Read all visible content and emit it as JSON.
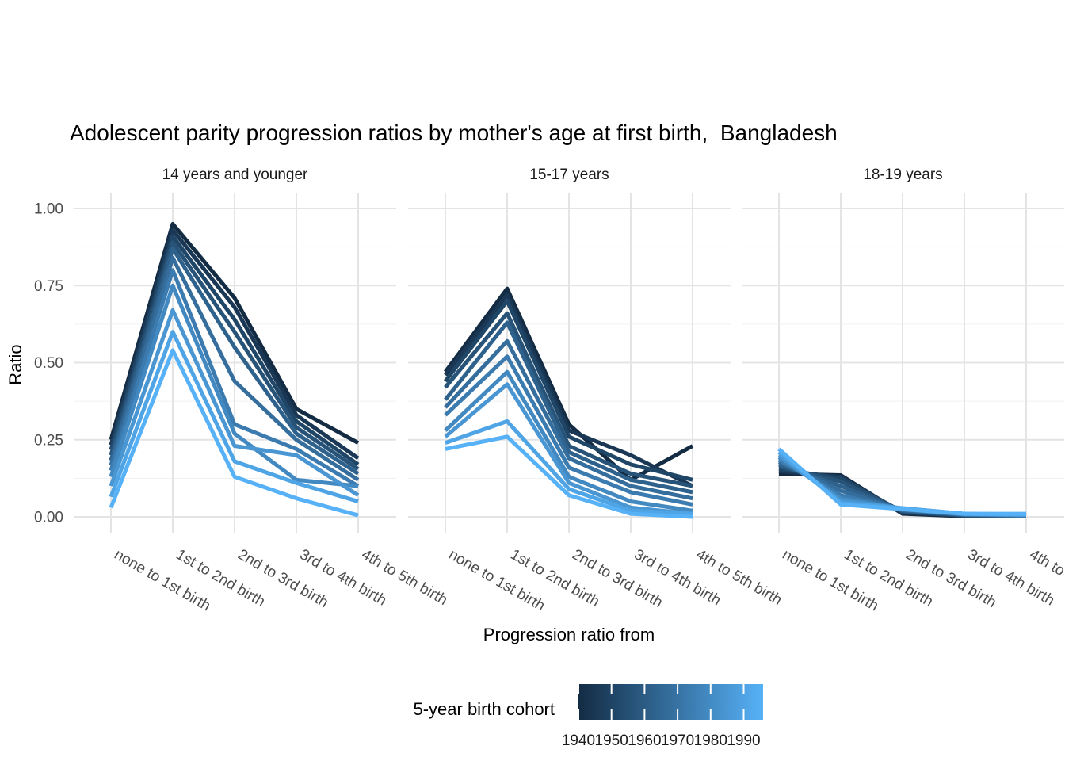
{
  "chart_data": {
    "type": "line",
    "title": "Adolescent parity progression ratios by mother's age at first birth,  Bangladesh",
    "xlabel": "Progression ratio from",
    "ylabel": "Ratio",
    "categories": [
      "none to 1st birth",
      "1st to 2nd birth",
      "2nd to 3rd birth",
      "3rd to 4th birth",
      "4th to 5th birth"
    ],
    "y_ticks": [
      {
        "v": 0.0,
        "label": "0.00"
      },
      {
        "v": 0.25,
        "label": "0.25"
      },
      {
        "v": 0.5,
        "label": "0.50"
      },
      {
        "v": 0.75,
        "label": "0.75"
      },
      {
        "v": 1.0,
        "label": "1.00"
      }
    ],
    "y_minor_ticks": [
      0.125,
      0.375,
      0.625,
      0.875
    ],
    "ylim": [
      0,
      1
    ],
    "grid": "major horizontal+vertical, minor horizontal; white background",
    "legend": {
      "title": "5-year birth cohort",
      "type": "colorbar",
      "position": "bottom",
      "ticks": [
        "1940",
        "1950",
        "1960",
        "1970",
        "1980",
        "1990"
      ],
      "low_color": "#132B43",
      "high_color": "#56B1F7"
    },
    "facets": [
      {
        "label": "14 years and younger",
        "series": [
          {
            "cohort": 1940,
            "values": [
              0.25,
              0.95,
              0.71,
              0.35,
              0.24
            ]
          },
          {
            "cohort": 1945,
            "values": [
              0.233,
              0.93,
              0.68,
              0.33,
              0.19
            ]
          },
          {
            "cohort": 1950,
            "values": [
              0.217,
              0.91,
              0.64,
              0.31,
              0.17
            ]
          },
          {
            "cohort": 1955,
            "values": [
              0.2,
              0.89,
              0.6,
              0.29,
              0.155
            ]
          },
          {
            "cohort": 1960,
            "values": [
              0.183,
              0.87,
              0.55,
              0.27,
              0.14
            ]
          },
          {
            "cohort": 1965,
            "values": [
              0.167,
              0.84,
              0.44,
              0.25,
              0.12
            ]
          },
          {
            "cohort": 1970,
            "values": [
              0.15,
              0.8,
              0.3,
              0.22,
              0.1
            ]
          },
          {
            "cohort": 1975,
            "values": [
              0.13,
              0.75,
              0.27,
              0.12,
              0.1
            ]
          },
          {
            "cohort": 1980,
            "values": [
              0.1,
              0.67,
              0.23,
              0.2,
              0.07
            ]
          },
          {
            "cohort": 1985,
            "values": [
              0.065,
              0.6,
              0.18,
              0.11,
              0.05
            ]
          },
          {
            "cohort": 1990,
            "values": [
              0.03,
              0.54,
              0.13,
              0.06,
              0.005
            ]
          }
        ]
      },
      {
        "label": "15-17 years",
        "series": [
          {
            "cohort": 1940,
            "values": [
              0.47,
              0.74,
              0.3,
              0.12,
              0.23
            ]
          },
          {
            "cohort": 1945,
            "values": [
              0.46,
              0.72,
              0.28,
              0.2,
              0.1
            ]
          },
          {
            "cohort": 1950,
            "values": [
              0.44,
              0.7,
              0.26,
              0.17,
              0.12
            ]
          },
          {
            "cohort": 1955,
            "values": [
              0.42,
              0.66,
              0.23,
              0.14,
              0.1
            ]
          },
          {
            "cohort": 1960,
            "values": [
              0.38,
              0.63,
              0.21,
              0.12,
              0.08
            ]
          },
          {
            "cohort": 1965,
            "values": [
              0.355,
              0.57,
              0.19,
              0.1,
              0.06
            ]
          },
          {
            "cohort": 1970,
            "values": [
              0.33,
              0.52,
              0.16,
              0.08,
              0.04
            ]
          },
          {
            "cohort": 1975,
            "values": [
              0.28,
              0.47,
              0.13,
              0.05,
              0.02
            ]
          },
          {
            "cohort": 1980,
            "values": [
              0.26,
              0.43,
              0.11,
              0.03,
              0.01
            ]
          },
          {
            "cohort": 1985,
            "values": [
              0.24,
              0.31,
              0.09,
              0.02,
              0.01
            ]
          },
          {
            "cohort": 1990,
            "values": [
              0.22,
              0.26,
              0.07,
              0.01,
              0.0
            ]
          }
        ]
      },
      {
        "label": "18-19 years",
        "series": [
          {
            "cohort": 1940,
            "values": [
              0.14,
              0.135,
              0.01,
              0.002,
              0.002
            ]
          },
          {
            "cohort": 1945,
            "values": [
              0.148,
              0.13,
              0.013,
              0.003,
              0.002
            ]
          },
          {
            "cohort": 1950,
            "values": [
              0.155,
              0.125,
              0.016,
              0.004,
              0.003
            ]
          },
          {
            "cohort": 1955,
            "values": [
              0.163,
              0.115,
              0.018,
              0.005,
              0.003
            ]
          },
          {
            "cohort": 1960,
            "values": [
              0.17,
              0.1,
              0.02,
              0.006,
              0.004
            ]
          },
          {
            "cohort": 1965,
            "values": [
              0.178,
              0.085,
              0.022,
              0.007,
              0.004
            ]
          },
          {
            "cohort": 1970,
            "values": [
              0.185,
              0.07,
              0.024,
              0.008,
              0.005
            ]
          },
          {
            "cohort": 1975,
            "values": [
              0.193,
              0.06,
              0.026,
              0.009,
              0.005
            ]
          },
          {
            "cohort": 1980,
            "values": [
              0.2,
              0.052,
              0.028,
              0.01,
              0.006
            ]
          },
          {
            "cohort": 1985,
            "values": [
              0.21,
              0.045,
              0.028,
              0.01,
              0.008
            ]
          },
          {
            "cohort": 1990,
            "values": [
              0.22,
              0.04,
              0.025,
              0.01,
              0.01
            ]
          }
        ]
      }
    ]
  },
  "colors": {
    "background": "#ffffff",
    "grid_major": "#e4e4e4",
    "grid_minor": "#f0f0f0",
    "axis_tick_text": "#4d4d4d",
    "strip_text": "#1a1a1a",
    "title_text": "#000000",
    "legend_tick_text": "#1a1a1a",
    "colorbar_tick": "#ffffff"
  }
}
